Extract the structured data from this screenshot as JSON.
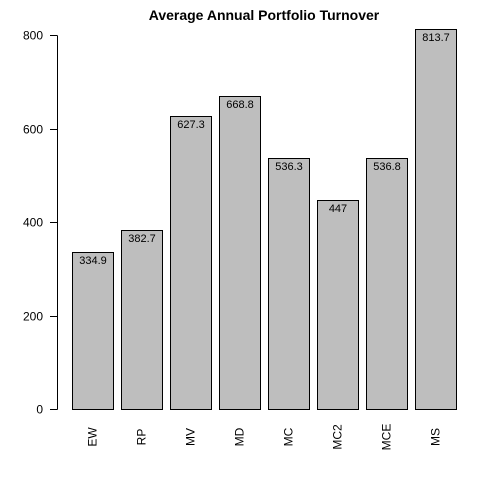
{
  "chart_data": {
    "type": "bar",
    "title": "Average Annual Portfolio Turnover",
    "xlabel": "",
    "ylabel": "",
    "categories": [
      "EW",
      "RP",
      "MV",
      "MD",
      "MC",
      "MC2",
      "MCE",
      "MS"
    ],
    "values": [
      334.9,
      382.7,
      627.3,
      668.8,
      536.3,
      447,
      536.8,
      813.7
    ],
    "value_labels": [
      "334.9",
      "382.7",
      "627.3",
      "668.8",
      "536.3",
      "447",
      "536.8",
      "813.7"
    ],
    "y_ticks": [
      0,
      200,
      400,
      600,
      800
    ],
    "ylim": [
      0,
      813.7
    ],
    "bar_color": "#bebebe",
    "grid": false,
    "legend": "none"
  }
}
